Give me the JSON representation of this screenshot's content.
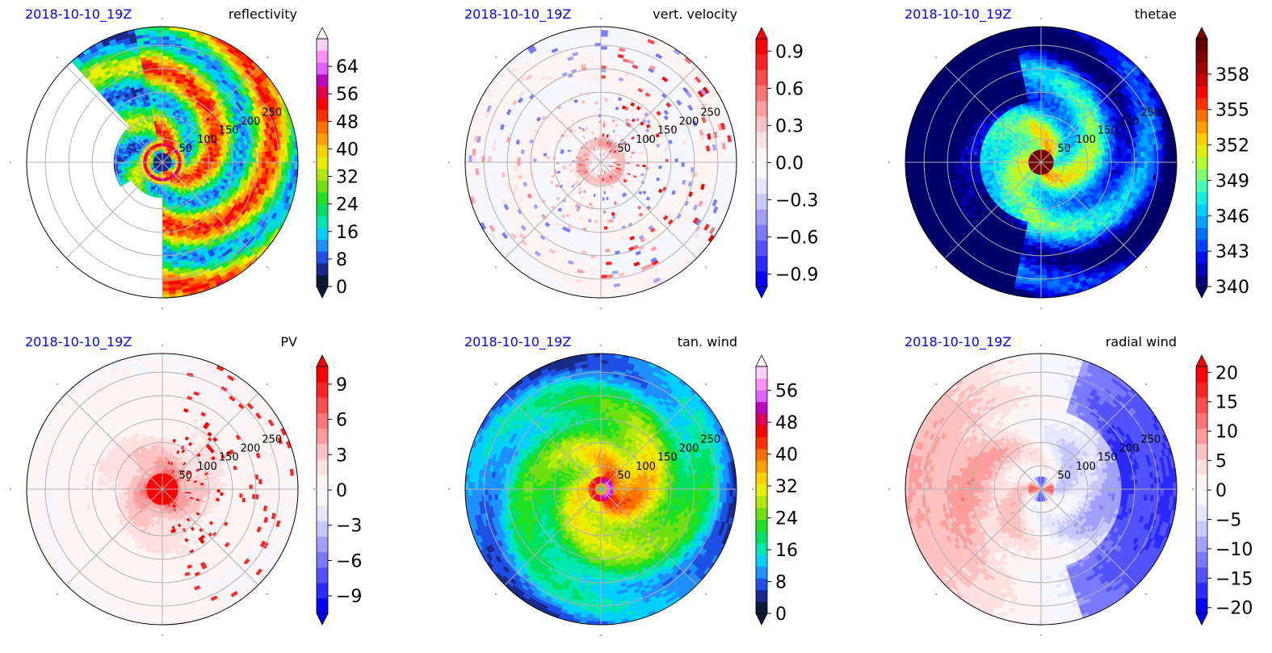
{
  "figure": {
    "radial_ticks": [
      "50",
      "100",
      "150",
      "200",
      "250"
    ]
  },
  "chart_data": [
    {
      "type": "heatmap",
      "projection": "polar",
      "date": "2018-10-10_19Z",
      "title": "reflectivity",
      "grid": true,
      "field": "reflectivity",
      "colorbar": {
        "ticks": [
          0,
          8,
          16,
          24,
          32,
          40,
          48,
          56,
          64
        ],
        "tick_labels": [
          "0",
          "8",
          "16",
          "24",
          "32",
          "40",
          "48",
          "56",
          "64"
        ],
        "range": [
          0,
          72
        ],
        "extend": "both",
        "colors": [
          "#0a1a3a",
          "#1a2a8a",
          "#1e50e6",
          "#1e90ff",
          "#00d0ff",
          "#00e8b0",
          "#00e060",
          "#20e020",
          "#70e010",
          "#b0e810",
          "#e8f000",
          "#ffd000",
          "#ffa000",
          "#ff7000",
          "#ff3000",
          "#ff0000",
          "#e00050",
          "#c000c0",
          "#e060ff",
          "#ff90ff",
          "#ffd0ff"
        ],
        "over_color": "#ffffff",
        "under_color": "#0a1a3a"
      }
    },
    {
      "type": "heatmap",
      "projection": "polar",
      "date": "2018-10-10_19Z",
      "title": "vert. velocity",
      "grid": true,
      "field": "w",
      "colorbar": {
        "ticks": [
          -0.9,
          -0.6,
          -0.3,
          0.0,
          0.3,
          0.6,
          0.9
        ],
        "tick_labels": [
          "−0.9",
          "−0.6",
          "−0.3",
          "0.0",
          "0.3",
          "0.6",
          "0.9"
        ],
        "range": [
          -1.0,
          1.0
        ],
        "extend": "both",
        "colors": [
          "#0000ff",
          "#2a2aff",
          "#5252ff",
          "#7a7aff",
          "#a0a0ff",
          "#c8c8ff",
          "#e6e6ff",
          "#f6f6ff",
          "#fff4f4",
          "#ffe0e0",
          "#ffc0c0",
          "#ff9c9c",
          "#ff7474",
          "#ff4c4c",
          "#ff2424",
          "#ff0000"
        ],
        "over_color": "#ff0000",
        "under_color": "#0000ff"
      }
    },
    {
      "type": "heatmap",
      "projection": "polar",
      "date": "2018-10-10_19Z",
      "title": "thetae",
      "grid": true,
      "field": "thetae",
      "colorbar": {
        "ticks": [
          340,
          343,
          346,
          349,
          352,
          355,
          358
        ],
        "tick_labels": [
          "340",
          "343",
          "346",
          "349",
          "352",
          "355",
          "358"
        ],
        "range": [
          340,
          361
        ],
        "extend": "both",
        "colors": [
          "#00007a",
          "#0000b8",
          "#0010f0",
          "#0040ff",
          "#0070ff",
          "#00a0ff",
          "#00d0ff",
          "#10f0e0",
          "#40ffb0",
          "#80ff70",
          "#b0ff30",
          "#e0f000",
          "#ffd000",
          "#ffa000",
          "#ff7000",
          "#ff3000",
          "#ff0000",
          "#d00000",
          "#a00000",
          "#800000",
          "#600000"
        ],
        "over_color": "#7a0000",
        "under_color": "#00006a"
      }
    },
    {
      "type": "heatmap",
      "projection": "polar",
      "date": "2018-10-10_19Z",
      "title": "PV",
      "grid": true,
      "field": "pv",
      "colorbar": {
        "ticks": [
          -9,
          -6,
          -3,
          0,
          3,
          6,
          9
        ],
        "tick_labels": [
          "−9",
          "−6",
          "−3",
          "0",
          "3",
          "6",
          "9"
        ],
        "range": [
          -10.5,
          10.5
        ],
        "extend": "both",
        "colors": [
          "#0000ff",
          "#2a2aff",
          "#5252ff",
          "#7a7aff",
          "#a0a0ff",
          "#c8c8ff",
          "#e6e6ff",
          "#f6f6ff",
          "#fff4f4",
          "#ffe0e0",
          "#ffc0c0",
          "#ff9c9c",
          "#ff7474",
          "#ff4c4c",
          "#ff2424",
          "#ff0000"
        ],
        "over_color": "#ff0000",
        "under_color": "#0000ff"
      }
    },
    {
      "type": "heatmap",
      "projection": "polar",
      "date": "2018-10-10_19Z",
      "title": "tan. wind",
      "grid": true,
      "field": "vt",
      "colorbar": {
        "ticks": [
          0,
          8,
          16,
          24,
          32,
          40,
          48,
          56
        ],
        "tick_labels": [
          "0",
          "8",
          "16",
          "24",
          "32",
          "40",
          "48",
          "56"
        ],
        "range": [
          0,
          62
        ],
        "extend": "both",
        "colors": [
          "#0a1a3a",
          "#1a2a8a",
          "#1e50e6",
          "#1e90ff",
          "#00d0ff",
          "#00e8b0",
          "#00e060",
          "#20e020",
          "#70e010",
          "#b0e810",
          "#e8f000",
          "#ffd000",
          "#ffa000",
          "#ff7000",
          "#ff3000",
          "#ff0000",
          "#e00050",
          "#c000c0",
          "#e060ff",
          "#ff90ff",
          "#ffd0ff"
        ],
        "over_color": "#ffffff",
        "under_color": "#0a1a3a"
      }
    },
    {
      "type": "heatmap",
      "projection": "polar",
      "date": "2018-10-10_19Z",
      "title": "radial wind",
      "grid": true,
      "field": "vr",
      "colorbar": {
        "ticks": [
          -20,
          -15,
          -10,
          -5,
          0,
          5,
          10,
          15,
          20
        ],
        "tick_labels": [
          "−20",
          "−15",
          "−10",
          "−5",
          "0",
          "5",
          "10",
          "15",
          "20"
        ],
        "range": [
          -21,
          21
        ],
        "extend": "both",
        "colors": [
          "#0000ff",
          "#2a2aff",
          "#5252ff",
          "#7a7aff",
          "#a0a0ff",
          "#c8c8ff",
          "#e6e6ff",
          "#f6f6ff",
          "#fff4f4",
          "#ffe0e0",
          "#ffc0c0",
          "#ff9c9c",
          "#ff7474",
          "#ff4c4c",
          "#ff2424",
          "#ff0000"
        ],
        "over_color": "#ff0000",
        "under_color": "#0000ff"
      }
    }
  ]
}
